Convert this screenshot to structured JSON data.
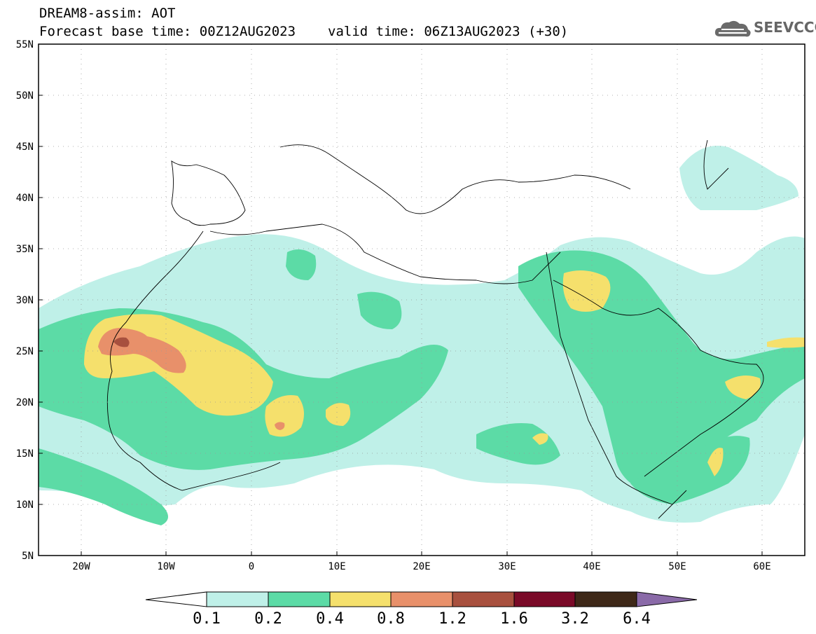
{
  "header": {
    "title_line1": "DREAM8-assim: AOT",
    "base_time": "Forecast base time: 00Z12AUG2023",
    "valid_time": "valid time: 06Z13AUG2023 (+30)"
  },
  "logo": {
    "text": "SEEVCCC",
    "icon": "cloud-icon"
  },
  "map": {
    "projection": "latitude-longitude",
    "lon_range": [
      -25,
      65
    ],
    "lat_range": [
      5,
      55
    ],
    "grid": "dotted",
    "lat_labels": [
      "55N",
      "50N",
      "45N",
      "40N",
      "35N",
      "30N",
      "25N",
      "20N",
      "15N",
      "10N",
      "5N"
    ],
    "lon_labels": [
      "20W",
      "10W",
      "0",
      "10E",
      "20E",
      "30E",
      "40E",
      "50E",
      "60E"
    ]
  },
  "colorbar": {
    "ticks": [
      "0.1",
      "0.2",
      "0.4",
      "0.8",
      "1.2",
      "1.6",
      "3.2",
      "6.4"
    ],
    "colors": [
      "#ffffff",
      "#bff0e8",
      "#5cdba6",
      "#f5e06c",
      "#e8906a",
      "#a8503e",
      "#7a0a28",
      "#3e2818",
      "#8a6aa8"
    ]
  }
}
